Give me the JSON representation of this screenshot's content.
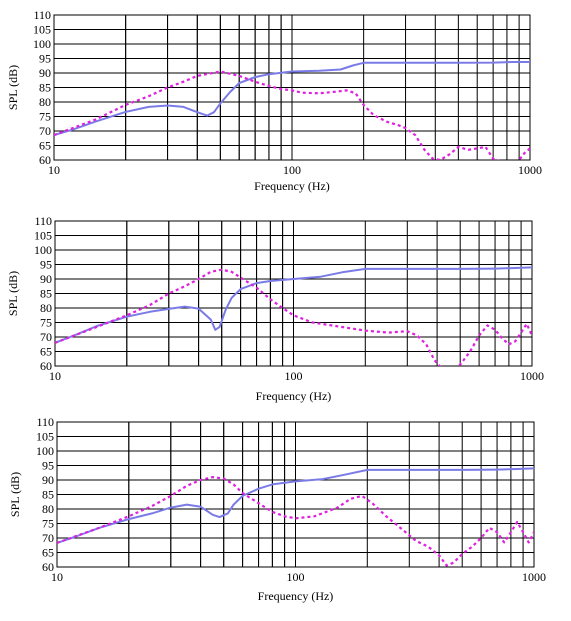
{
  "chart_data": [
    {
      "type": "line",
      "xscale": "log",
      "xlim": [
        10,
        1000
      ],
      "ylim": [
        60,
        110
      ],
      "xlabel": "Frequency (Hz)",
      "ylabel": "SPL (dB)",
      "xtick_labels": [
        "10",
        "100",
        "1000"
      ],
      "ytick_labels": [
        "60",
        "65",
        "70",
        "75",
        "80",
        "85",
        "90",
        "95",
        "100",
        "105",
        "110"
      ],
      "grid": true,
      "series": [
        {
          "style": "solid",
          "color": "#7b7be8",
          "points": [
            [
              10,
              68.6
            ],
            [
              12,
              70.5
            ],
            [
              15,
              73.3
            ],
            [
              20,
              76.6
            ],
            [
              25,
              78.3
            ],
            [
              30,
              78.8
            ],
            [
              35,
              78.3
            ],
            [
              40,
              76.5
            ],
            [
              44,
              75.3
            ],
            [
              47,
              76.5
            ],
            [
              50,
              79.5
            ],
            [
              55,
              83.5
            ],
            [
              60,
              86.5
            ],
            [
              70,
              88.6
            ],
            [
              80,
              89.6
            ],
            [
              100,
              90.5
            ],
            [
              130,
              90.8
            ],
            [
              160,
              91.2
            ],
            [
              180,
              92.6
            ],
            [
              200,
              93.5
            ],
            [
              300,
              93.5
            ],
            [
              500,
              93.5
            ],
            [
              700,
              93.6
            ],
            [
              850,
              93.8
            ],
            [
              1000,
              93.8
            ]
          ]
        },
        {
          "style": "dotted",
          "color": "#e020e0",
          "points": [
            [
              10,
              68.6
            ],
            [
              15,
              74.0
            ],
            [
              20,
              79.0
            ],
            [
              25,
              82.0
            ],
            [
              30,
              85.0
            ],
            [
              35,
              87.0
            ],
            [
              40,
              89.0
            ],
            [
              50,
              90.5
            ],
            [
              60,
              89.0
            ],
            [
              70,
              87.0
            ],
            [
              80,
              85.5
            ],
            [
              90,
              84.5
            ],
            [
              100,
              84.0
            ],
            [
              110,
              83.2
            ],
            [
              130,
              83.0
            ],
            [
              150,
              83.5
            ],
            [
              170,
              84.0
            ],
            [
              185,
              83.0
            ],
            [
              200,
              79.0
            ],
            [
              220,
              75.5
            ],
            [
              250,
              73.2
            ],
            [
              280,
              72.0
            ],
            [
              300,
              71.0
            ],
            [
              330,
              68.5
            ],
            [
              360,
              63.5
            ],
            [
              390,
              60.5
            ],
            [
              420,
              60.0
            ],
            [
              460,
              62.0
            ],
            [
              500,
              64.5
            ],
            [
              550,
              63.5
            ],
            [
              600,
              64.0
            ],
            [
              650,
              64.5
            ],
            [
              700,
              60.5
            ],
            [
              750,
              59.5
            ],
            [
              800,
              59.0
            ],
            [
              850,
              59.0
            ],
            [
              900,
              60.0
            ],
            [
              950,
              62.5
            ],
            [
              1000,
              64.0
            ]
          ]
        }
      ]
    },
    {
      "type": "line",
      "xscale": "log",
      "xlim": [
        10,
        1000
      ],
      "ylim": [
        60,
        110
      ],
      "xlabel": "Frequency (Hz)",
      "ylabel": "SPL (dB)",
      "xtick_labels": [
        "10",
        "100",
        "1000"
      ],
      "ytick_labels": [
        "60",
        "65",
        "70",
        "75",
        "80",
        "85",
        "90",
        "95",
        "100",
        "105",
        "110"
      ],
      "grid": true,
      "series": [
        {
          "style": "solid",
          "color": "#7b7be8",
          "points": [
            [
              10,
              68.0
            ],
            [
              12,
              70.5
            ],
            [
              15,
              73.8
            ],
            [
              20,
              77.0
            ],
            [
              25,
              78.7
            ],
            [
              30,
              79.7
            ],
            [
              35,
              80.5
            ],
            [
              40,
              79.8
            ],
            [
              45,
              76.0
            ],
            [
              47,
              72.5
            ],
            [
              49,
              73.5
            ],
            [
              52,
              79.5
            ],
            [
              55,
              83.5
            ],
            [
              60,
              86.5
            ],
            [
              70,
              88.6
            ],
            [
              80,
              89.3
            ],
            [
              100,
              90.0
            ],
            [
              130,
              90.8
            ],
            [
              160,
              92.3
            ],
            [
              200,
              93.5
            ],
            [
              300,
              93.5
            ],
            [
              500,
              93.5
            ],
            [
              700,
              93.6
            ],
            [
              850,
              93.8
            ],
            [
              1000,
              94.0
            ]
          ]
        },
        {
          "style": "dotted",
          "color": "#e020e0",
          "points": [
            [
              10,
              68.0
            ],
            [
              15,
              73.5
            ],
            [
              20,
              77.5
            ],
            [
              25,
              81.0
            ],
            [
              30,
              85.0
            ],
            [
              35,
              87.5
            ],
            [
              40,
              90.0
            ],
            [
              45,
              92.5
            ],
            [
              50,
              93.2
            ],
            [
              55,
              92.5
            ],
            [
              60,
              90.5
            ],
            [
              70,
              87.0
            ],
            [
              80,
              83.0
            ],
            [
              90,
              80.0
            ],
            [
              100,
              77.5
            ],
            [
              120,
              75.0
            ],
            [
              150,
              73.8
            ],
            [
              200,
              72.2
            ],
            [
              250,
              71.5
            ],
            [
              300,
              72.0
            ],
            [
              330,
              70.5
            ],
            [
              360,
              67.5
            ],
            [
              390,
              62.0
            ],
            [
              420,
              59.0
            ],
            [
              460,
              58.5
            ],
            [
              500,
              60.5
            ],
            [
              550,
              65.0
            ],
            [
              600,
              70.5
            ],
            [
              650,
              74.0
            ],
            [
              700,
              72.5
            ],
            [
              750,
              69.5
            ],
            [
              800,
              67.5
            ],
            [
              850,
              68.5
            ],
            [
              900,
              71.5
            ],
            [
              950,
              74.5
            ],
            [
              1000,
              70.5
            ]
          ]
        }
      ]
    },
    {
      "type": "line",
      "xscale": "log",
      "xlim": [
        10,
        1000
      ],
      "ylim": [
        60,
        110
      ],
      "xlabel": "Frequency (Hz)",
      "ylabel": "SPL (dB)",
      "xtick_labels": [
        "10",
        "100",
        "1000"
      ],
      "ytick_labels": [
        "60",
        "65",
        "70",
        "75",
        "80",
        "85",
        "90",
        "95",
        "100",
        "105",
        "110"
      ],
      "grid": true,
      "series": [
        {
          "style": "solid",
          "color": "#7b7be8",
          "points": [
            [
              10,
              68.3
            ],
            [
              12,
              70.5
            ],
            [
              15,
              73.5
            ],
            [
              20,
              76.5
            ],
            [
              25,
              78.5
            ],
            [
              30,
              80.5
            ],
            [
              35,
              81.5
            ],
            [
              40,
              80.8
            ],
            [
              45,
              78.0
            ],
            [
              48,
              77.2
            ],
            [
              52,
              78.5
            ],
            [
              55,
              81.5
            ],
            [
              60,
              84.5
            ],
            [
              70,
              87.0
            ],
            [
              80,
              88.5
            ],
            [
              100,
              89.5
            ],
            [
              130,
              90.3
            ],
            [
              160,
              91.8
            ],
            [
              200,
              93.5
            ],
            [
              300,
              93.5
            ],
            [
              500,
              93.5
            ],
            [
              700,
              93.6
            ],
            [
              850,
              93.8
            ],
            [
              1000,
              94.0
            ]
          ]
        },
        {
          "style": "dotted",
          "color": "#e020e0",
          "points": [
            [
              10,
              68.3
            ],
            [
              15,
              73.5
            ],
            [
              20,
              77.5
            ],
            [
              25,
              81.0
            ],
            [
              30,
              84.5
            ],
            [
              35,
              88.0
            ],
            [
              40,
              90.0
            ],
            [
              45,
              91.0
            ],
            [
              50,
              90.5
            ],
            [
              55,
              88.5
            ],
            [
              60,
              85.5
            ],
            [
              70,
              82.0
            ],
            [
              80,
              79.0
            ],
            [
              90,
              77.5
            ],
            [
              100,
              76.8
            ],
            [
              120,
              77.5
            ],
            [
              150,
              80.5
            ],
            [
              170,
              83.5
            ],
            [
              190,
              84.5
            ],
            [
              210,
              82.0
            ],
            [
              240,
              77.5
            ],
            [
              280,
              73.0
            ],
            [
              320,
              69.0
            ],
            [
              360,
              67.0
            ],
            [
              400,
              64.0
            ],
            [
              430,
              60.5
            ],
            [
              460,
              61.5
            ],
            [
              500,
              64.5
            ],
            [
              550,
              67.0
            ],
            [
              600,
              70.0
            ],
            [
              650,
              73.5
            ],
            [
              700,
              72.0
            ],
            [
              750,
              68.5
            ],
            [
              800,
              72.0
            ],
            [
              850,
              75.5
            ],
            [
              900,
              72.0
            ],
            [
              950,
              68.5
            ],
            [
              1000,
              72.0
            ]
          ]
        }
      ]
    }
  ]
}
